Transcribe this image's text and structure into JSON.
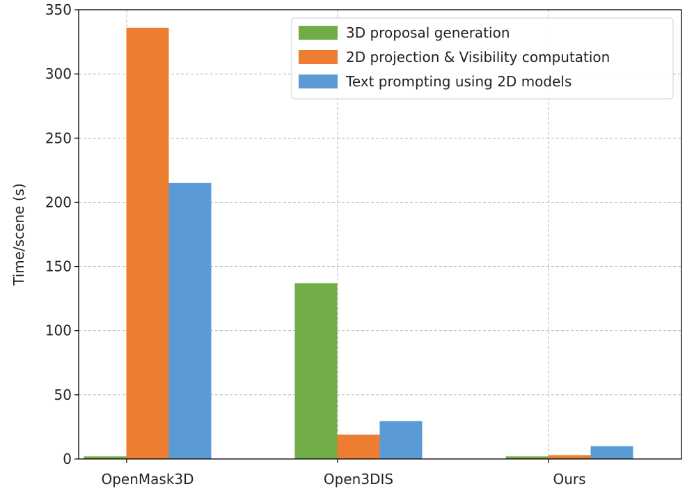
{
  "chart_data": {
    "type": "bar",
    "title": "",
    "xlabel": "",
    "ylabel": "Time/scene (s)",
    "ylim": [
      0,
      350
    ],
    "yticks": [
      "0",
      "50",
      "100",
      "150",
      "200",
      "250",
      "300",
      "350"
    ],
    "grid": true,
    "legend_position": "top-right",
    "categories": [
      "OpenMask3D",
      "Open3DIS",
      "Ours"
    ],
    "series": [
      {
        "name": "3D proposal generation",
        "color": "#70ad47",
        "values": [
          2,
          137,
          2
        ]
      },
      {
        "name": "2D projection & Visibility computation",
        "color": "#ed7d31",
        "values": [
          336,
          19,
          3
        ]
      },
      {
        "name": "Text prompting using 2D models",
        "color": "#5b9bd5",
        "values": [
          215,
          29.5,
          10
        ]
      }
    ]
  }
}
